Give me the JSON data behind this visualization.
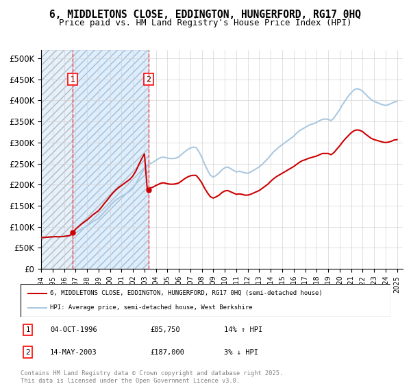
{
  "title1": "6, MIDDLETONS CLOSE, EDDINGTON, HUNGERFORD, RG17 0HQ",
  "title2": "Price paid vs. HM Land Registry's House Price Index (HPI)",
  "ylim": [
    0,
    520000
  ],
  "yticks": [
    0,
    50000,
    100000,
    150000,
    200000,
    250000,
    300000,
    350000,
    400000,
    450000,
    500000
  ],
  "ytick_labels": [
    "£0",
    "£50K",
    "£100K",
    "£150K",
    "£200K",
    "£250K",
    "£300K",
    "£350K",
    "£400K",
    "£450K",
    "£500K"
  ],
  "xlim_start": 1994.0,
  "xlim_end": 2025.5,
  "sale1_x": 1996.75,
  "sale1_y": 85750,
  "sale2_x": 2003.37,
  "sale2_y": 187000,
  "sale1_label": "1",
  "sale2_label": "2",
  "red_color": "#cc0000",
  "blue_color": "#aac8e0",
  "dashed_red": "#ff4444",
  "background_hatch": "#e8f0f8",
  "legend_line1": "6, MIDDLETONS CLOSE, EDDINGTON, HUNGERFORD, RG17 0HQ (semi-detached house)",
  "legend_line2": "HPI: Average price, semi-detached house, West Berkshire",
  "table_row1": [
    "1",
    "04-OCT-1996",
    "£85,750",
    "14% ↑ HPI"
  ],
  "table_row2": [
    "2",
    "14-MAY-2003",
    "£187,000",
    "3% ↓ HPI"
  ],
  "footnote": "Contains HM Land Registry data © Crown copyright and database right 2025.\nThis data is licensed under the Open Government Licence v3.0.",
  "title_fontsize": 10.5,
  "axis_fontsize": 8.5,
  "hpi_data": {
    "years": [
      1994.0,
      1994.25,
      1994.5,
      1994.75,
      1995.0,
      1995.25,
      1995.5,
      1995.75,
      1996.0,
      1996.25,
      1996.5,
      1996.75,
      1997.0,
      1997.25,
      1997.5,
      1997.75,
      1998.0,
      1998.25,
      1998.5,
      1998.75,
      1999.0,
      1999.25,
      1999.5,
      1999.75,
      2000.0,
      2000.25,
      2000.5,
      2000.75,
      2001.0,
      2001.25,
      2001.5,
      2001.75,
      2002.0,
      2002.25,
      2002.5,
      2002.75,
      2003.0,
      2003.25,
      2003.5,
      2003.75,
      2004.0,
      2004.25,
      2004.5,
      2004.75,
      2005.0,
      2005.25,
      2005.5,
      2005.75,
      2006.0,
      2006.25,
      2006.5,
      2006.75,
      2007.0,
      2007.25,
      2007.5,
      2007.75,
      2008.0,
      2008.25,
      2008.5,
      2008.75,
      2009.0,
      2009.25,
      2009.5,
      2009.75,
      2010.0,
      2010.25,
      2010.5,
      2010.75,
      2011.0,
      2011.25,
      2011.5,
      2011.75,
      2012.0,
      2012.25,
      2012.5,
      2012.75,
      2013.0,
      2013.25,
      2013.5,
      2013.75,
      2014.0,
      2014.25,
      2014.5,
      2014.75,
      2015.0,
      2015.25,
      2015.5,
      2015.75,
      2016.0,
      2016.25,
      2016.5,
      2016.75,
      2017.0,
      2017.25,
      2017.5,
      2017.75,
      2018.0,
      2018.25,
      2018.5,
      2018.75,
      2019.0,
      2019.25,
      2019.5,
      2019.75,
      2020.0,
      2020.25,
      2020.5,
      2020.75,
      2021.0,
      2021.25,
      2021.5,
      2021.75,
      2022.0,
      2022.25,
      2022.5,
      2022.75,
      2023.0,
      2023.25,
      2023.5,
      2023.75,
      2024.0,
      2024.25,
      2024.5,
      2024.75,
      2025.0
    ],
    "hpi_values": [
      74000,
      74500,
      75000,
      75500,
      76000,
      76500,
      76000,
      76500,
      77000,
      78000,
      79000,
      81000,
      85000,
      90000,
      94000,
      98000,
      102000,
      107000,
      112000,
      116000,
      120000,
      127000,
      135000,
      142000,
      150000,
      157000,
      163000,
      168000,
      172000,
      176000,
      180000,
      185000,
      192000,
      202000,
      215000,
      227000,
      238000,
      245000,
      250000,
      253000,
      258000,
      262000,
      265000,
      265000,
      263000,
      262000,
      262000,
      263000,
      266000,
      272000,
      278000,
      283000,
      287000,
      289000,
      288000,
      278000,
      265000,
      248000,
      234000,
      222000,
      218000,
      222000,
      228000,
      235000,
      240000,
      242000,
      238000,
      234000,
      230000,
      232000,
      230000,
      228000,
      227000,
      230000,
      234000,
      238000,
      242000,
      248000,
      255000,
      262000,
      270000,
      278000,
      284000,
      290000,
      295000,
      300000,
      305000,
      310000,
      315000,
      322000,
      328000,
      332000,
      336000,
      340000,
      343000,
      345000,
      348000,
      352000,
      355000,
      356000,
      355000,
      352000,
      358000,
      368000,
      378000,
      390000,
      400000,
      410000,
      418000,
      425000,
      428000,
      426000,
      422000,
      415000,
      408000,
      402000,
      398000,
      395000,
      392000,
      390000,
      388000,
      390000,
      393000,
      396000,
      398000
    ],
    "price_values": [
      74000,
      74500,
      75000,
      75500,
      76000,
      76500,
      76000,
      76500,
      77000,
      78000,
      79000,
      85750,
      94000,
      100000,
      106000,
      111000,
      116000,
      122000,
      128000,
      133000,
      138000,
      146000,
      155000,
      163000,
      172000,
      180000,
      187000,
      193000,
      198000,
      203000,
      208000,
      213000,
      221000,
      232000,
      247000,
      261000,
      273000,
      187000,
      192000,
      194000,
      198000,
      201000,
      204000,
      204000,
      202000,
      201000,
      201000,
      202000,
      204000,
      209000,
      214000,
      218000,
      221000,
      222000,
      222000,
      214000,
      204000,
      191000,
      180000,
      171000,
      168000,
      171000,
      175000,
      181000,
      185000,
      186000,
      183000,
      180000,
      177000,
      178000,
      177000,
      175000,
      175000,
      177000,
      180000,
      183000,
      186000,
      191000,
      196000,
      201000,
      208000,
      214000,
      219000,
      223000,
      227000,
      231000,
      235000,
      239000,
      243000,
      248000,
      253000,
      257000,
      259000,
      262000,
      264000,
      266000,
      268000,
      271000,
      274000,
      274000,
      274000,
      271000,
      276000,
      284000,
      292000,
      301000,
      309000,
      316000,
      323000,
      328000,
      330000,
      329000,
      326000,
      320000,
      315000,
      310000,
      307000,
      305000,
      303000,
      301000,
      300000,
      301000,
      303000,
      306000,
      307000
    ]
  }
}
